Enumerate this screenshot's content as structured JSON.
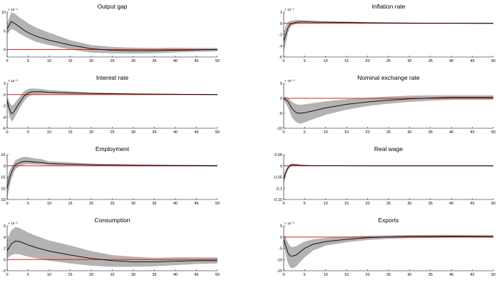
{
  "colors": {
    "band": "#b3b3b3",
    "median": "#000000",
    "zero_line": "#e0201b",
    "axis": "#000000"
  },
  "chart_data": [
    {
      "type": "area",
      "title": "Output gap",
      "exponent": "× 10⁻³",
      "xlim": [
        0,
        50
      ],
      "ylim": [
        -2,
        10
      ],
      "xticks": [
        0,
        5,
        10,
        15,
        20,
        25,
        30,
        35,
        40,
        45,
        50
      ],
      "xtick_labels": [
        "0",
        "5",
        "10",
        "15",
        "20",
        "25",
        "30",
        "35",
        "40",
        "45",
        "50"
      ],
      "yticks": [
        0,
        5,
        10
      ],
      "ytick_labels": [
        "0",
        "5",
        "10"
      ],
      "x": [
        0,
        1,
        2,
        3,
        4,
        5,
        7,
        10,
        15,
        20,
        25,
        30,
        35,
        40,
        45,
        50
      ],
      "median": [
        5.5,
        7.5,
        6.8,
        6,
        5.2,
        4.5,
        3.5,
        2.5,
        1.2,
        0.2,
        -0.2,
        -0.3,
        -0.3,
        -0.2,
        -0.1,
        0
      ],
      "lower": [
        4,
        5.5,
        5,
        4.2,
        3.6,
        3,
        2,
        1.2,
        0,
        -0.8,
        -1,
        -1.1,
        -1,
        -0.8,
        -0.6,
        -0.5
      ],
      "upper": [
        7,
        10,
        9.5,
        8.5,
        7.8,
        7,
        5.8,
        4.5,
        2.5,
        1.2,
        0.7,
        0.5,
        0.4,
        0.5,
        0.4,
        0.4
      ]
    },
    {
      "type": "area",
      "title": "Inflation rate",
      "exponent": "× 10⁻³",
      "xlim": [
        0,
        50
      ],
      "ylim": [
        -6,
        2
      ],
      "xticks": [
        0,
        5,
        10,
        15,
        20,
        25,
        30,
        35,
        40,
        45,
        50
      ],
      "xtick_labels": [
        "0",
        "5",
        "10",
        "15",
        "20",
        "25",
        "30",
        "35",
        "40",
        "45",
        "50"
      ],
      "yticks": [
        -6,
        -4,
        -2,
        0,
        2
      ],
      "ytick_labels": [
        "-6",
        "-4",
        "-2",
        "0",
        "2"
      ],
      "x": [
        0,
        0.5,
        1,
        1.5,
        2,
        3,
        4,
        6,
        8,
        10,
        15,
        20,
        30,
        40,
        50
      ],
      "median": [
        -3.2,
        -2,
        -0.8,
        -0.2,
        0,
        0.2,
        0.25,
        0.25,
        0.2,
        0.2,
        0.15,
        0.1,
        0.05,
        0.02,
        0
      ],
      "lower": [
        -5,
        -3.5,
        -1.8,
        -0.8,
        -0.4,
        -0.1,
        0,
        0,
        0,
        0,
        0,
        0,
        -0.05,
        -0.05,
        -0.05
      ],
      "upper": [
        -1.5,
        -0.5,
        0.2,
        0.4,
        0.5,
        0.6,
        0.6,
        0.5,
        0.45,
        0.4,
        0.3,
        0.2,
        0.1,
        0.08,
        0.05
      ]
    },
    {
      "type": "area",
      "title": "Interest rate",
      "exponent": "× 10⁻³",
      "xlim": [
        0,
        50
      ],
      "ylim": [
        -6,
        2
      ],
      "xticks": [
        0,
        5,
        10,
        15,
        20,
        25,
        30,
        35,
        40,
        45,
        50
      ],
      "xtick_labels": [
        "0",
        "5",
        "10",
        "15",
        "20",
        "25",
        "30",
        "35",
        "40",
        "45",
        "50"
      ],
      "yticks": [
        -6,
        -4,
        -2,
        0,
        2
      ],
      "ytick_labels": [
        "-6",
        "-4",
        "-2",
        "0",
        "2"
      ],
      "x": [
        0,
        0.5,
        1,
        1.5,
        2,
        3,
        4,
        5,
        6,
        8,
        10,
        15,
        20,
        30,
        40,
        50
      ],
      "median": [
        -1,
        -2.5,
        -3.4,
        -3.2,
        -2.6,
        -1.4,
        -0.3,
        0.3,
        0.5,
        0.5,
        0.4,
        0.3,
        0.2,
        0.1,
        0.05,
        0
      ],
      "lower": [
        -1.8,
        -3.8,
        -4.8,
        -4.5,
        -3.8,
        -2.4,
        -1.2,
        -0.4,
        0,
        0.1,
        0.1,
        0.05,
        0,
        -0.05,
        -0.05,
        -0.05
      ],
      "upper": [
        -0.3,
        -1.2,
        -2,
        -1.8,
        -1.3,
        -0.4,
        0.6,
        1,
        1.1,
        1,
        0.8,
        0.6,
        0.4,
        0.2,
        0.12,
        0.08
      ]
    },
    {
      "type": "area",
      "title": "Nominal exchange rate",
      "exponent": "× 10⁻³",
      "xlim": [
        0,
        50
      ],
      "ylim": [
        -10,
        5
      ],
      "xticks": [
        0,
        5,
        10,
        15,
        20,
        25,
        30,
        35,
        40,
        45,
        50
      ],
      "xtick_labels": [
        "0",
        "5",
        "10",
        "15",
        "20",
        "25",
        "30",
        "35",
        "40",
        "45",
        "50"
      ],
      "yticks": [
        -10,
        -5,
        0,
        5
      ],
      "ytick_labels": [
        "-10",
        "-5",
        "0",
        "5"
      ],
      "x": [
        0,
        1,
        2,
        3,
        4,
        5,
        7,
        10,
        15,
        20,
        25,
        30,
        35,
        40,
        45,
        50
      ],
      "median": [
        0,
        -1,
        -3.5,
        -4.8,
        -5,
        -4.8,
        -4.2,
        -3.2,
        -2,
        -1.2,
        -0.6,
        -0.2,
        0.1,
        0.3,
        0.3,
        0.3
      ],
      "lower": [
        -0.5,
        -3,
        -6.5,
        -8,
        -8.5,
        -8,
        -7,
        -5.5,
        -3.8,
        -2.6,
        -1.8,
        -1.2,
        -0.8,
        -0.5,
        -0.5,
        -0.5
      ],
      "upper": [
        0.5,
        0.2,
        -1.2,
        -2,
        -2.2,
        -2,
        -1.6,
        -1,
        -0.3,
        0.2,
        0.6,
        0.9,
        1,
        1,
        1,
        1
      ]
    },
    {
      "type": "area",
      "title": "Employment",
      "xlim": [
        0,
        50
      ],
      "ylim": [
        -0.03,
        0.01
      ],
      "xticks": [
        0,
        5,
        10,
        15,
        20,
        25,
        30,
        35,
        40,
        45,
        50
      ],
      "xtick_labels": [
        "0",
        "5",
        "10",
        "15",
        "20",
        "25",
        "30",
        "35",
        "40",
        "45",
        "50"
      ],
      "yticks": [
        -0.03,
        -0.02,
        -0.01,
        0,
        0.01
      ],
      "ytick_labels": [
        "-0.03",
        "-0.02",
        "-0.01",
        "0",
        "0.01"
      ],
      "x": [
        0,
        0.5,
        1,
        1.5,
        2,
        3,
        4,
        5,
        6,
        8,
        10,
        15,
        20,
        30,
        40,
        50
      ],
      "median": [
        -0.02,
        -0.012,
        -0.006,
        -0.002,
        0.001,
        0.003,
        0.004,
        0.004,
        0.0035,
        0.003,
        0.002,
        0.0015,
        0.001,
        0.0005,
        0.0002,
        0
      ],
      "lower": [
        -0.03,
        -0.02,
        -0.012,
        -0.007,
        -0.003,
        0,
        0.001,
        0.0015,
        0.0012,
        0.001,
        0.0005,
        0,
        -0.0003,
        -0.0005,
        -0.0005,
        -0.0005
      ],
      "upper": [
        -0.012,
        -0.005,
        -0.001,
        0.002,
        0.005,
        0.007,
        0.008,
        0.0078,
        0.007,
        0.006,
        0.004,
        0.003,
        0.002,
        0.0012,
        0.001,
        0.0008
      ]
    },
    {
      "type": "area",
      "title": "Real wage",
      "xlim": [
        0,
        50
      ],
      "ylim": [
        -0.15,
        0.05
      ],
      "xticks": [
        0,
        5,
        10,
        15,
        20,
        25,
        30,
        35,
        40,
        45,
        50
      ],
      "xtick_labels": [
        "0",
        "5",
        "10",
        "15",
        "20",
        "25",
        "30",
        "35",
        "40",
        "45",
        "50"
      ],
      "yticks": [
        -0.15,
        -0.1,
        -0.05,
        0,
        0.05
      ],
      "ytick_labels": [
        "-0.15",
        "-0.1",
        "-0.05",
        "0",
        "0.05"
      ],
      "x": [
        0,
        0.5,
        1,
        1.5,
        2,
        3,
        4,
        6,
        10,
        20,
        30,
        40,
        50
      ],
      "median": [
        -0.06,
        -0.03,
        -0.01,
        0.002,
        0.005,
        0.004,
        0.002,
        0.001,
        0.0005,
        0,
        0,
        0,
        0
      ],
      "lower": [
        -0.08,
        -0.045,
        -0.02,
        -0.006,
        -0.002,
        0,
        0,
        0,
        -0.001,
        -0.001,
        -0.001,
        -0.001,
        -0.001
      ],
      "upper": [
        -0.04,
        -0.015,
        0,
        0.008,
        0.01,
        0.008,
        0.005,
        0.003,
        0.002,
        0.001,
        0.001,
        0.001,
        0.001
      ]
    },
    {
      "type": "area",
      "title": "Consumption",
      "exponent": "× 10⁻³",
      "xlim": [
        0,
        50
      ],
      "ylim": [
        -2,
        6
      ],
      "xticks": [
        0,
        5,
        10,
        15,
        20,
        25,
        30,
        35,
        40,
        45,
        50
      ],
      "xtick_labels": [
        "0",
        "5",
        "10",
        "15",
        "20",
        "25",
        "30",
        "35",
        "40",
        "45",
        "50"
      ],
      "yticks": [
        -2,
        0,
        2,
        4,
        6
      ],
      "ytick_labels": [
        "-2",
        "0",
        "2",
        "4",
        "6"
      ],
      "x": [
        0,
        1,
        2,
        3,
        4,
        5,
        7,
        10,
        15,
        20,
        25,
        30,
        35,
        40,
        45,
        50
      ],
      "median": [
        1.5,
        2.8,
        3.3,
        3.2,
        2.9,
        2.6,
        2.1,
        1.5,
        0.8,
        0.2,
        -0.2,
        -0.4,
        -0.4,
        -0.3,
        -0.2,
        -0.2
      ],
      "lower": [
        0.2,
        0.8,
        1,
        0.9,
        0.7,
        0.5,
        0.2,
        -0.2,
        -0.7,
        -1.1,
        -1.3,
        -1.3,
        -1.2,
        -1,
        -0.8,
        -0.7
      ],
      "upper": [
        3.5,
        5.2,
        5.8,
        5.6,
        5.2,
        4.8,
        4.2,
        3.4,
        2.5,
        1.5,
        0.8,
        0.5,
        0.3,
        0.4,
        0.4,
        0.4
      ]
    },
    {
      "type": "area",
      "title": "Exports",
      "exponent": "× 10⁻³",
      "xlim": [
        0,
        50
      ],
      "ylim": [
        -15,
        5
      ],
      "xticks": [
        0,
        5,
        10,
        15,
        20,
        25,
        30,
        35,
        40,
        45,
        50
      ],
      "xtick_labels": [
        "0",
        "5",
        "10",
        "15",
        "20",
        "25",
        "30",
        "35",
        "40",
        "45",
        "50"
      ],
      "yticks": [
        -15,
        -10,
        -5,
        0,
        5
      ],
      "ytick_labels": [
        "-15",
        "-10",
        "-5",
        "0",
        "5"
      ],
      "x": [
        0,
        0.5,
        1,
        1.5,
        2,
        3,
        4,
        5,
        7,
        10,
        15,
        20,
        25,
        30,
        40,
        50
      ],
      "median": [
        -1,
        -4,
        -7,
        -8.3,
        -8.5,
        -8,
        -6.5,
        -5,
        -3.2,
        -2,
        -1,
        -0.3,
        0.1,
        0.3,
        0.4,
        0.3
      ],
      "lower": [
        -3,
        -8,
        -11.5,
        -13.5,
        -14,
        -13,
        -11,
        -9,
        -6,
        -3.8,
        -2.3,
        -1.3,
        -0.8,
        -0.5,
        -0.3,
        -0.3
      ],
      "upper": [
        1,
        0,
        -2.5,
        -4,
        -4.5,
        -4,
        -3,
        -2,
        -1,
        -0.4,
        0.2,
        0.6,
        0.8,
        0.9,
        1,
        0.9
      ]
    }
  ]
}
